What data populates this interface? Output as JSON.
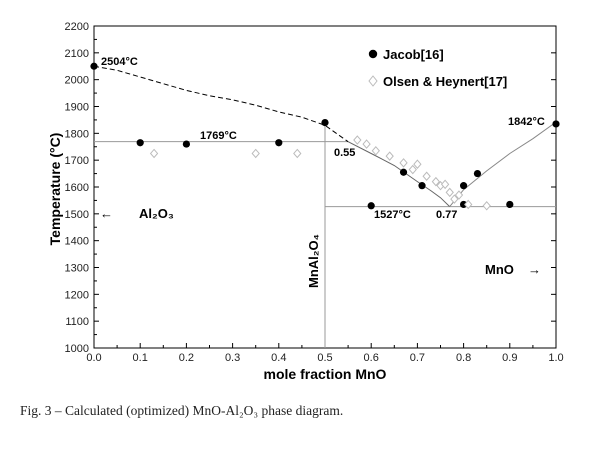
{
  "chart_data": {
    "type": "scatter",
    "xlabel": "mole fraction MnO",
    "ylabel": "Temperature (°C)",
    "xlim": [
      0.0,
      1.0
    ],
    "ylim": [
      1000,
      2200
    ],
    "xticks": [
      "0.0",
      "0.1",
      "0.2",
      "0.3",
      "0.4",
      "0.5",
      "0.6",
      "0.7",
      "0.8",
      "0.9",
      "1.0"
    ],
    "yticks": [
      "1000",
      "1100",
      "1200",
      "1300",
      "1400",
      "1500",
      "1600",
      "1700",
      "1800",
      "1900",
      "2000",
      "2100",
      "2200"
    ],
    "grid": false,
    "legend_position": "top-right",
    "series": [
      {
        "name": "Jacob[16]",
        "marker": "filled-circle",
        "color": "#000000",
        "x": [
          0.0,
          0.1,
          0.2,
          0.4,
          0.5,
          0.6,
          0.67,
          0.71,
          0.8,
          0.8,
          0.83,
          0.9,
          1.0
        ],
        "y": [
          2050,
          1765,
          1760,
          1765,
          1840,
          1530,
          1655,
          1605,
          1605,
          1535,
          1650,
          1535,
          1835
        ]
      },
      {
        "name": "Olsen & Heynert[17]",
        "marker": "open-diamond",
        "color": "#bbbbbb",
        "x": [
          0.13,
          0.35,
          0.44,
          0.57,
          0.59,
          0.61,
          0.64,
          0.67,
          0.69,
          0.7,
          0.72,
          0.74,
          0.75,
          0.76,
          0.77,
          0.78,
          0.79,
          0.81,
          0.85
        ],
        "y": [
          1725,
          1725,
          1725,
          1775,
          1760,
          1735,
          1715,
          1690,
          1665,
          1685,
          1640,
          1620,
          1605,
          1610,
          1580,
          1555,
          1570,
          1535,
          1530
        ]
      }
    ],
    "curves": {
      "liquidus_left": {
        "x": [
          0.0,
          0.05,
          0.1,
          0.15,
          0.2,
          0.25,
          0.3,
          0.35,
          0.4,
          0.45,
          0.5,
          0.55
        ],
        "y": [
          2050,
          2035,
          2010,
          1985,
          1960,
          1940,
          1925,
          1905,
          1880,
          1860,
          1830,
          1769
        ]
      },
      "liquidus_middle": {
        "x": [
          0.55,
          0.6,
          0.65,
          0.7,
          0.73,
          0.75,
          0.77
        ],
        "y": [
          1769,
          1725,
          1680,
          1620,
          1585,
          1560,
          1527
        ]
      },
      "liquidus_right": {
        "x": [
          0.77,
          0.8,
          0.85,
          0.9,
          0.95,
          1.0
        ],
        "y": [
          1527,
          1590,
          1660,
          1725,
          1780,
          1842
        ]
      },
      "eutectic_left_T": 1769,
      "eutectic_right_T": 1527,
      "compound_x": 0.5
    },
    "annotations": {
      "t_2504": "2504°C",
      "t_1769": "1769°C",
      "x_055": "0.55",
      "t_1842": "1842°C",
      "t_1527": "1527°C",
      "x_077": "0.77",
      "phase_al2o3": "Al₂O₃",
      "phase_mnal2o4": "MnAl₂O₄",
      "phase_mno": "MnO",
      "arrow_left": "←",
      "arrow_right": "→"
    },
    "caption": "Fig. 3 – Calculated (optimized) MnO-Al₂O₃ phase diagram."
  }
}
